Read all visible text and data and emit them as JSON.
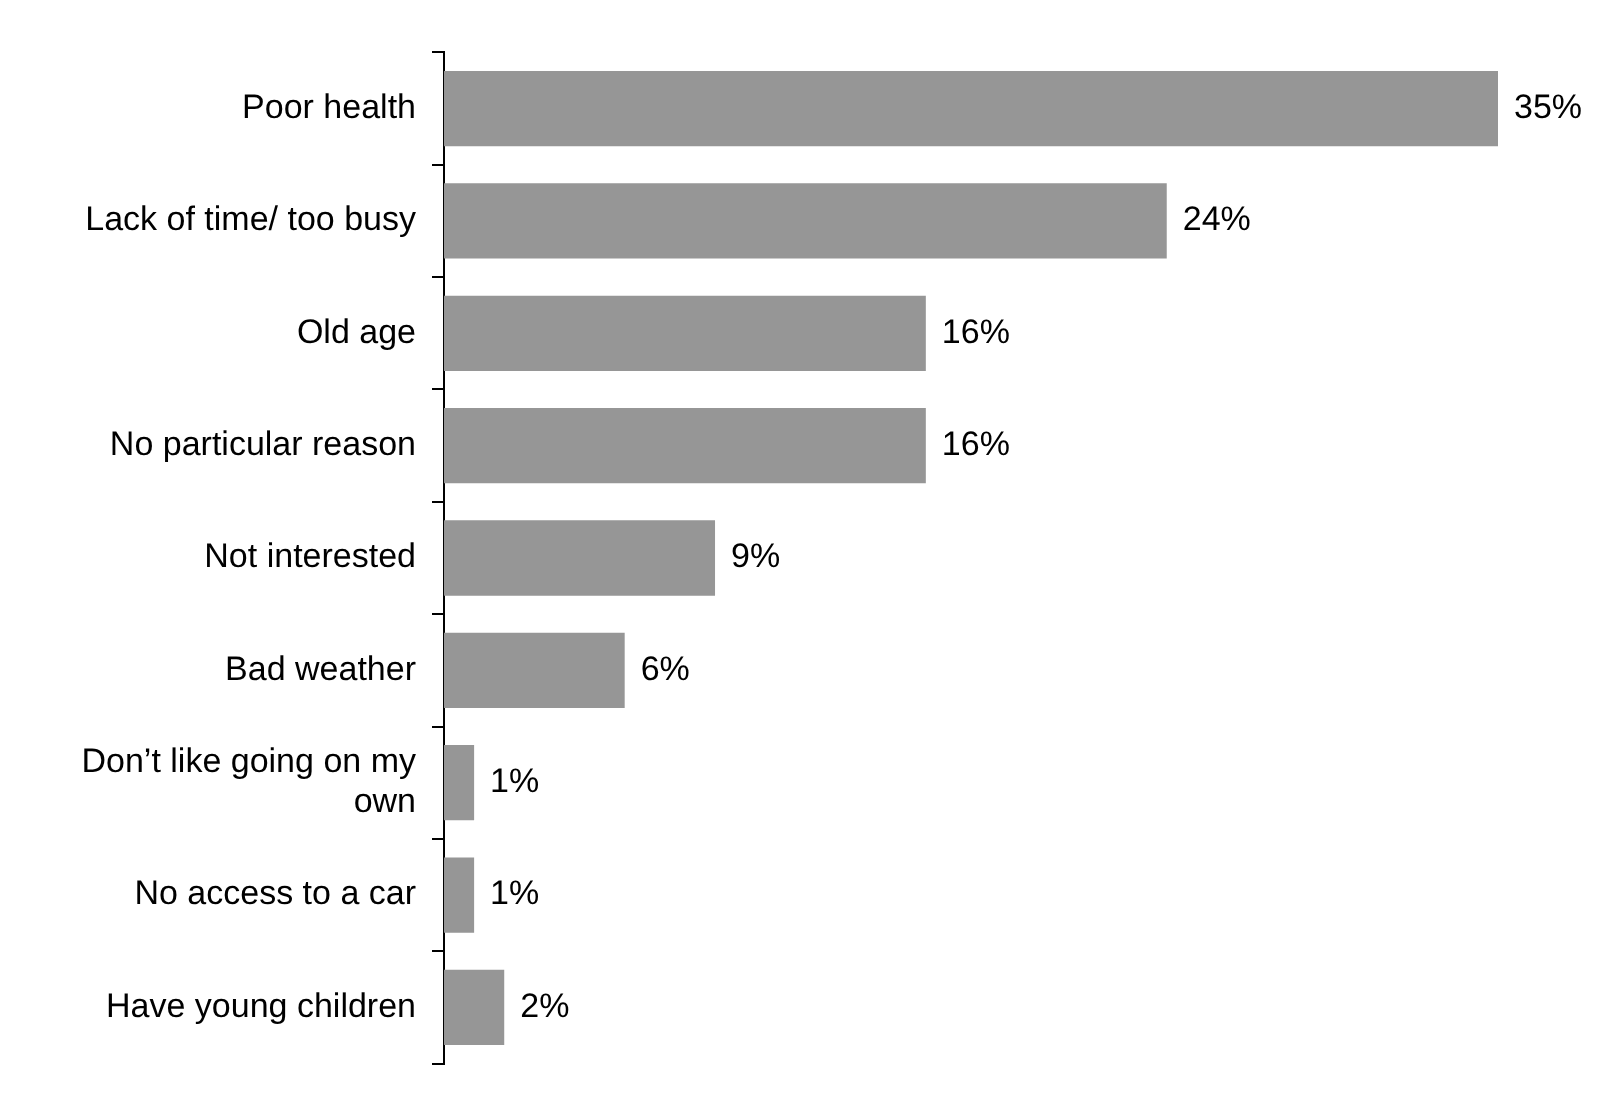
{
  "chart_data": {
    "type": "bar",
    "orientation": "horizontal",
    "categories": [
      "Poor health",
      "Lack of time/ too busy",
      "Old age",
      "No particular reason",
      "Not interested",
      "Bad weather",
      "Don’t like going on my own",
      "No access to a car",
      "Have young children"
    ],
    "values": [
      35,
      24,
      16,
      16,
      9,
      6,
      1,
      1,
      2
    ],
    "value_labels": [
      "35%",
      "24%",
      "16%",
      "16%",
      "9%",
      "6%",
      "1%",
      "1%",
      "2%"
    ],
    "color": "#969696"
  }
}
